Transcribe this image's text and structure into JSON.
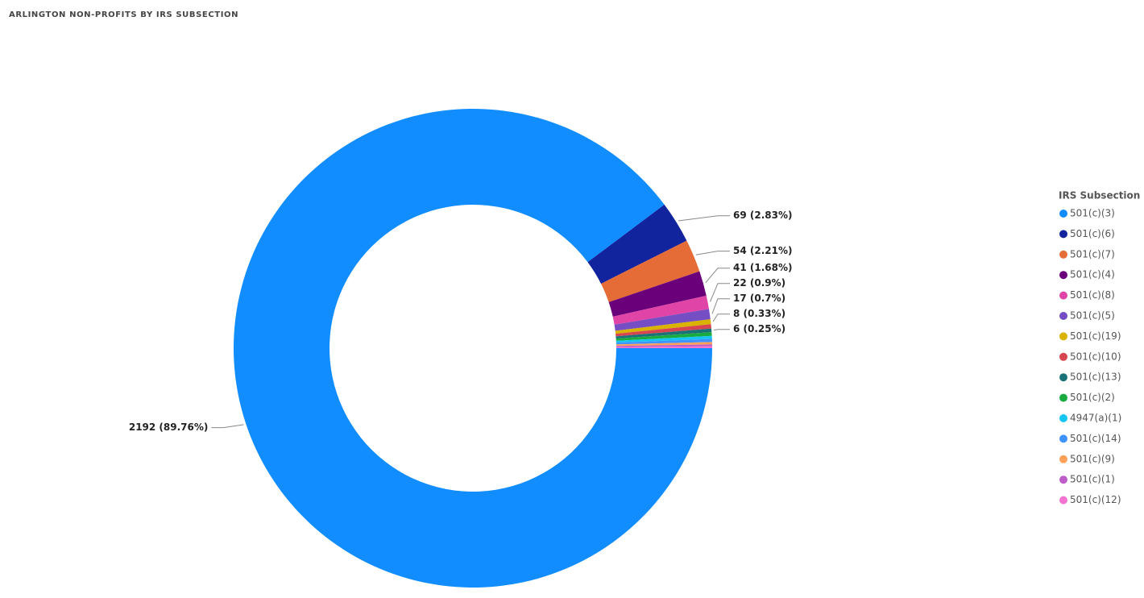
{
  "chart_data": {
    "type": "donut",
    "title": "ARLINGTON NON-PROFITS BY IRS SUBSECTION",
    "legend_title": "IRS Subsection",
    "legend": "right",
    "categories": [
      "501(c)(3)",
      "501(c)(6)",
      "501(c)(7)",
      "501(c)(4)",
      "501(c)(8)",
      "501(c)(5)",
      "501(c)(19)",
      "501(c)(10)",
      "501(c)(13)",
      "501(c)(2)",
      "4947(a)(1)",
      "501(c)(14)",
      "501(c)(9)",
      "501(c)(1)",
      "501(c)(12)"
    ],
    "values": [
      2192,
      69,
      54,
      41,
      22,
      17,
      8,
      7,
      6,
      6,
      5,
      5,
      4,
      3,
      3
    ],
    "value_labels": [
      "2192 (89.76%)",
      "69 (2.83%)",
      "54 (2.21%)",
      "41 (1.68%)",
      "22 (0.9%)",
      "17 (0.7%)",
      "8 (0.33%)",
      null,
      "6 (0.25%)",
      null,
      null,
      null,
      null,
      null,
      null
    ],
    "colors": [
      "#118DFF",
      "#12239E",
      "#E66C37",
      "#6B007B",
      "#E044A7",
      "#744EC2",
      "#D9B300",
      "#D64550",
      "#197278",
      "#1AAB40",
      "#15C6F4",
      "#4092FF",
      "#FFA058",
      "#BE5DC9",
      "#F472D0"
    ]
  }
}
